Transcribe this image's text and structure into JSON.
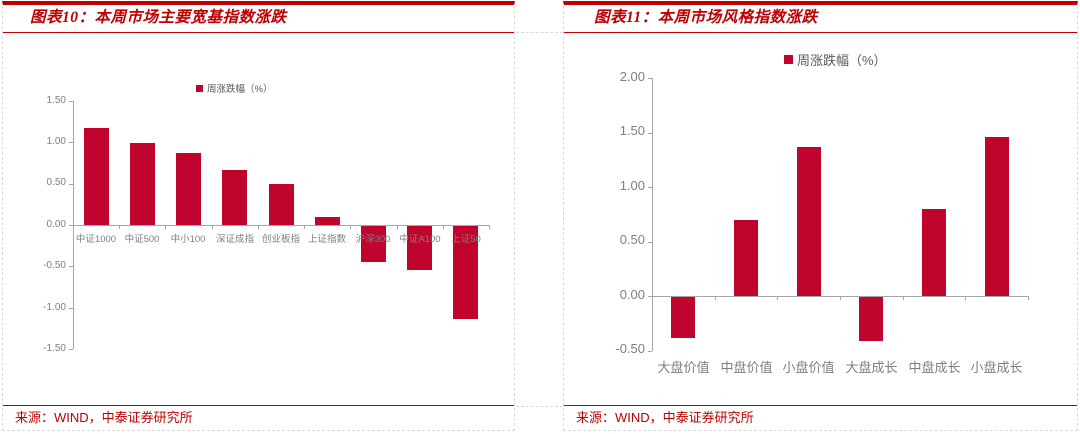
{
  "colors": {
    "accent": "#C00000",
    "bar": "#C1042E",
    "axis_line": "#A6A6A6",
    "tick_label": "#7F7F7F",
    "legend_text": "#595959"
  },
  "panels": [
    {
      "title": "图表10：本周市场主要宽基指数涨跌",
      "source": "来源：WIND，中泰证券研究所"
    },
    {
      "title": "图表11：本周市场风格指数涨跌",
      "source": "来源：WIND，中泰证券研究所"
    }
  ],
  "chart_data": [
    {
      "type": "bar",
      "title": "本周市场主要宽基指数涨跌",
      "legend": "周涨跌幅（%）",
      "legend_position": "top-center",
      "grid": false,
      "categories": [
        "中证1000",
        "中证500",
        "中小100",
        "深证成指",
        "创业板指",
        "上证指数",
        "沪深300",
        "中证A100",
        "上证50"
      ],
      "values": [
        1.17,
        0.99,
        0.87,
        0.67,
        0.5,
        0.1,
        -0.44,
        -0.53,
        -1.13
      ],
      "ylim": [
        -1.5,
        1.5
      ],
      "yticks": [
        1.5,
        1.0,
        0.5,
        0.0,
        -0.5,
        -1.0,
        -1.5
      ]
    },
    {
      "type": "bar",
      "title": "本周市场风格指数涨跌",
      "legend": "周涨跌幅（%）",
      "legend_position": "top-center",
      "grid": false,
      "categories": [
        "大盘价值",
        "中盘价值",
        "小盘价值",
        "大盘成长",
        "中盘成长",
        "小盘成长"
      ],
      "values": [
        -0.38,
        0.7,
        1.37,
        -0.4,
        0.8,
        1.46
      ],
      "ylim": [
        -0.5,
        2.0
      ],
      "yticks": [
        2.0,
        1.5,
        1.0,
        0.5,
        0.0,
        -0.5
      ]
    }
  ]
}
